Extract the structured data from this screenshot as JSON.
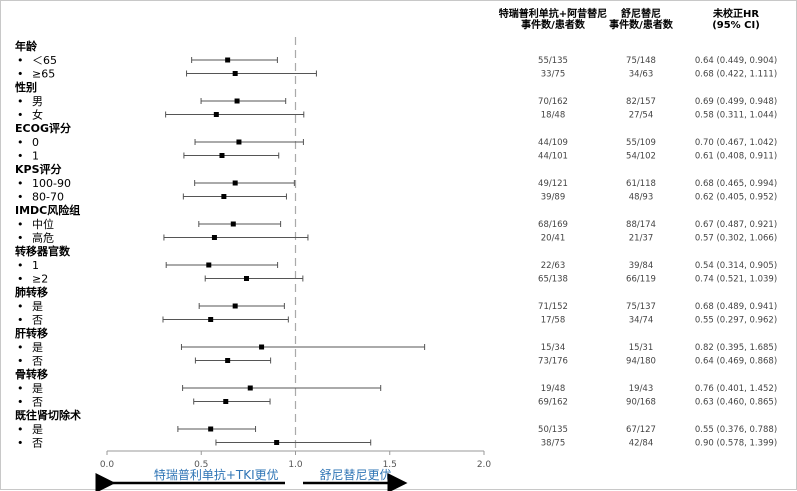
{
  "chart_data": {
    "type": "forest",
    "headers": {
      "col1": [
        "特瑞普利单抗+阿昔替尼",
        "事件数/患者数"
      ],
      "col2": [
        "舒尼替尼",
        "事件数/患者数"
      ],
      "col3": [
        "未校正HR",
        "(95% CI)"
      ]
    },
    "xlim": [
      0.0,
      2.0
    ],
    "xticks": [
      "0.0",
      "0.5",
      "1.0",
      "1.5",
      "2.0"
    ],
    "reference_line": 1.0,
    "favors_left": "特瑞普利单抗+TKI更优",
    "favors_right": "舒尼替尼更优",
    "groups": [
      {
        "name": "年龄",
        "rows": [
          {
            "label": "＜65",
            "hr": 0.64,
            "lo": 0.449,
            "hi": 0.904,
            "c1": "55/135",
            "c2": "75/148",
            "text": "0.64 (0.449, 0.904)"
          },
          {
            "label": "≥65",
            "hr": 0.68,
            "lo": 0.422,
            "hi": 1.111,
            "c1": "33/75",
            "c2": "34/63",
            "text": "0.68 (0.422, 1.111)"
          }
        ]
      },
      {
        "name": "性别",
        "rows": [
          {
            "label": "男",
            "hr": 0.69,
            "lo": 0.499,
            "hi": 0.948,
            "c1": "70/162",
            "c2": "82/157",
            "text": "0.69 (0.499, 0.948)"
          },
          {
            "label": "女",
            "hr": 0.58,
            "lo": 0.311,
            "hi": 1.044,
            "c1": "18/48",
            "c2": "27/54",
            "text": "0.58 (0.311, 1.044)"
          }
        ]
      },
      {
        "name": "ECOG评分",
        "rows": [
          {
            "label": "0",
            "hr": 0.7,
            "lo": 0.467,
            "hi": 1.042,
            "c1": "44/109",
            "c2": "55/109",
            "text": "0.70 (0.467, 1.042)"
          },
          {
            "label": "1",
            "hr": 0.61,
            "lo": 0.408,
            "hi": 0.911,
            "c1": "44/101",
            "c2": "54/102",
            "text": "0.61 (0.408, 0.911)"
          }
        ]
      },
      {
        "name": "KPS评分",
        "rows": [
          {
            "label": "100-90",
            "hr": 0.68,
            "lo": 0.465,
            "hi": 0.994,
            "c1": "49/121",
            "c2": "61/118",
            "text": "0.68 (0.465, 0.994)"
          },
          {
            "label": "80-70",
            "hr": 0.62,
            "lo": 0.405,
            "hi": 0.952,
            "c1": "39/89",
            "c2": "48/93",
            "text": "0.62 (0.405, 0.952)"
          }
        ]
      },
      {
        "name": "IMDC风险组",
        "rows": [
          {
            "label": "中位",
            "hr": 0.67,
            "lo": 0.487,
            "hi": 0.921,
            "c1": "68/169",
            "c2": "88/174",
            "text": "0.67 (0.487, 0.921)"
          },
          {
            "label": "高危",
            "hr": 0.57,
            "lo": 0.302,
            "hi": 1.066,
            "c1": "20/41",
            "c2": "21/37",
            "text": "0.57 (0.302, 1.066)"
          }
        ]
      },
      {
        "name": "转移器官数",
        "rows": [
          {
            "label": "1",
            "hr": 0.54,
            "lo": 0.314,
            "hi": 0.905,
            "c1": "22/63",
            "c2": "39/84",
            "text": "0.54 (0.314, 0.905)"
          },
          {
            "label": "≥2",
            "hr": 0.74,
            "lo": 0.521,
            "hi": 1.039,
            "c1": "65/138",
            "c2": "66/119",
            "text": "0.74 (0.521, 1.039)"
          }
        ]
      },
      {
        "name": "肺转移",
        "rows": [
          {
            "label": "是",
            "hr": 0.68,
            "lo": 0.489,
            "hi": 0.941,
            "c1": "71/152",
            "c2": "75/137",
            "text": "0.68 (0.489, 0.941)"
          },
          {
            "label": "否",
            "hr": 0.55,
            "lo": 0.297,
            "hi": 0.962,
            "c1": "17/58",
            "c2": "34/74",
            "text": "0.55 (0.297, 0.962)"
          }
        ]
      },
      {
        "name": "肝转移",
        "rows": [
          {
            "label": "是",
            "hr": 0.82,
            "lo": 0.395,
            "hi": 1.685,
            "c1": "15/34",
            "c2": "15/31",
            "text": "0.82 (0.395, 1.685)"
          },
          {
            "label": "否",
            "hr": 0.64,
            "lo": 0.469,
            "hi": 0.868,
            "c1": "73/176",
            "c2": "94/180",
            "text": "0.64 (0.469, 0.868)"
          }
        ]
      },
      {
        "name": "骨转移",
        "rows": [
          {
            "label": "是",
            "hr": 0.76,
            "lo": 0.401,
            "hi": 1.452,
            "c1": "19/48",
            "c2": "19/43",
            "text": "0.76 (0.401, 1.452)"
          },
          {
            "label": "否",
            "hr": 0.63,
            "lo": 0.46,
            "hi": 0.865,
            "c1": "69/162",
            "c2": "90/168",
            "text": "0.63 (0.460, 0.865)"
          }
        ]
      },
      {
        "name": "既往肾切除术",
        "rows": [
          {
            "label": "是",
            "hr": 0.55,
            "lo": 0.376,
            "hi": 0.788,
            "c1": "50/135",
            "c2": "67/127",
            "text": "0.55 (0.376, 0.788)"
          },
          {
            "label": "否",
            "hr": 0.9,
            "lo": 0.578,
            "hi": 1.399,
            "c1": "38/75",
            "c2": "42/84",
            "text": "0.90 (0.578, 1.399)"
          }
        ]
      }
    ]
  }
}
